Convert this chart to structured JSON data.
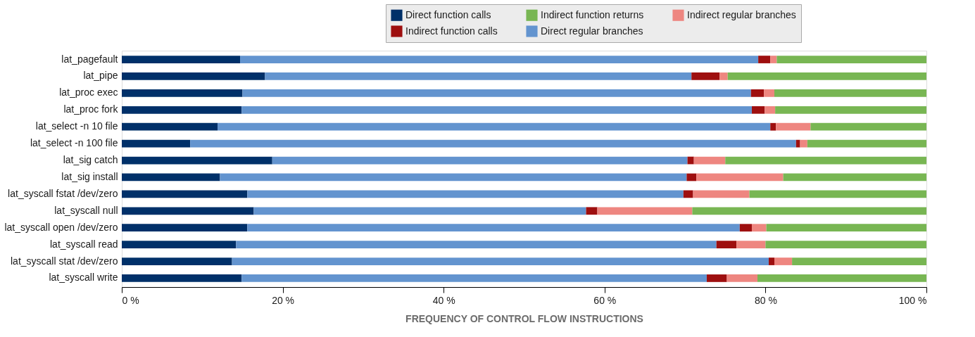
{
  "chart_data": {
    "type": "bar",
    "orientation": "horizontal",
    "stacked": true,
    "xlabel": "FREQUENCY OF CONTROL FLOW INSTRUCTIONS",
    "categories": [
      "lat_pagefault",
      "lat_pipe",
      "lat_proc exec",
      "lat_proc fork",
      "lat_select -n 10 file",
      "lat_select -n 100 file",
      "lat_sig catch",
      "lat_sig install",
      "lat_syscall fstat /dev/zero",
      "lat_syscall null",
      "lat_syscall open /dev/zero",
      "lat_syscall read",
      "lat_syscall stat /dev/zero",
      "lat_syscall write"
    ],
    "series": [
      {
        "name": "Direct function calls",
        "color": "#003069",
        "values": [
          14.7,
          17.8,
          15.0,
          14.9,
          11.9,
          8.5,
          18.7,
          12.2,
          15.6,
          16.4,
          15.6,
          14.2,
          13.7,
          14.9
        ]
      },
      {
        "name": "Direct regular branches",
        "color": "#6394cf",
        "values": [
          64.4,
          53.0,
          63.2,
          63.4,
          68.7,
          75.3,
          51.6,
          58.0,
          54.2,
          41.3,
          61.2,
          59.7,
          66.7,
          57.8
        ]
      },
      {
        "name": "Indirect function calls",
        "color": "#9e0f0f",
        "values": [
          1.5,
          3.5,
          1.6,
          1.6,
          0.7,
          0.5,
          0.8,
          1.2,
          1.2,
          1.4,
          1.5,
          2.5,
          0.7,
          2.5
        ]
      },
      {
        "name": "Indirect regular branches",
        "color": "#ee8680",
        "values": [
          0.8,
          1.0,
          1.3,
          1.3,
          4.3,
          0.9,
          3.9,
          10.8,
          7.0,
          11.8,
          1.8,
          3.6,
          2.2,
          3.8
        ]
      },
      {
        "name": "Indirect function returns",
        "color": "#78b653",
        "values": [
          18.6,
          24.7,
          18.9,
          18.8,
          14.4,
          14.8,
          25.0,
          17.8,
          22.0,
          29.1,
          19.9,
          20.0,
          16.7,
          21.0
        ]
      }
    ],
    "xlim": [
      0,
      100
    ],
    "xticks": [
      {
        "value": 0,
        "label": "0 %"
      },
      {
        "value": 20,
        "label": "20 %"
      },
      {
        "value": 40,
        "label": "40 %"
      },
      {
        "value": 60,
        "label": "60 %"
      },
      {
        "value": 80,
        "label": "80 %"
      },
      {
        "value": 100,
        "label": "100 %"
      }
    ],
    "grid": false,
    "legend": "top right"
  }
}
